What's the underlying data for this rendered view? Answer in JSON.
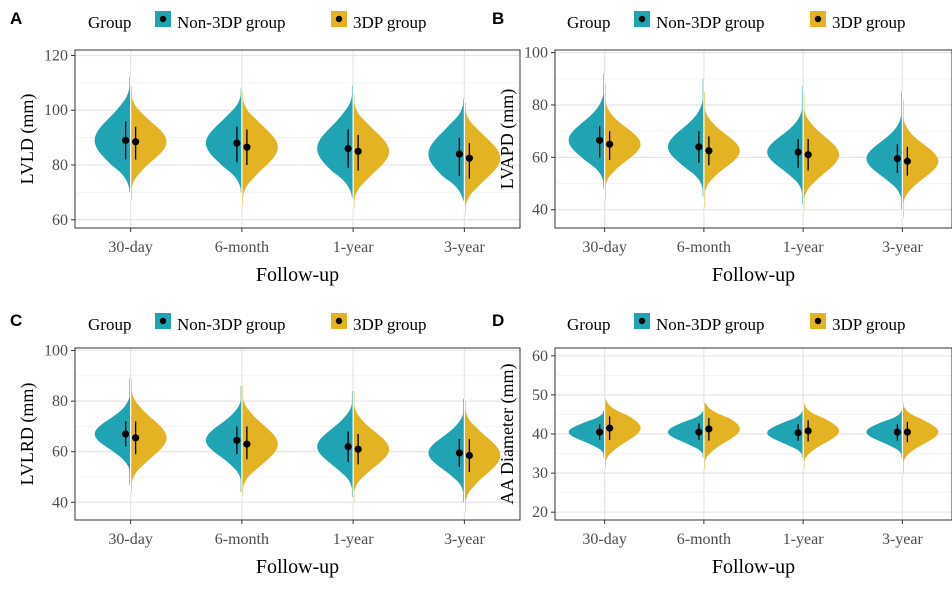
{
  "legend": {
    "title": "Group",
    "items": [
      {
        "label": "Non-3DP group",
        "color": "#20A4B4"
      },
      {
        "label": "3DP group",
        "color": "#E4B324"
      }
    ]
  },
  "chart_data": [
    {
      "panel": "A",
      "type": "violin-split",
      "xlabel": "Follow-up",
      "ylabel": "LVLD (mm)",
      "ylim": [
        57,
        122
      ],
      "yticks": [
        60,
        80,
        100,
        120
      ],
      "grid": true,
      "legend_position": "top",
      "categories": [
        "30-day",
        "6-month",
        "1-year",
        "3-year"
      ],
      "series": [
        {
          "name": "Non-3DP group",
          "mean": [
            89,
            88,
            86,
            84
          ],
          "sd_low": [
            82,
            81,
            79,
            76
          ],
          "sd_high": [
            96,
            94,
            93,
            90
          ],
          "min": [
            70,
            70,
            68,
            67
          ],
          "max": [
            112,
            108,
            109,
            104
          ]
        },
        {
          "name": "3DP group",
          "mean": [
            88.5,
            86.5,
            85,
            82.5
          ],
          "sd_low": [
            82,
            80,
            78,
            75
          ],
          "sd_high": [
            94,
            93,
            91,
            88
          ],
          "min": [
            67,
            65,
            64,
            62
          ],
          "max": [
            109,
            107,
            106,
            103
          ]
        }
      ]
    },
    {
      "panel": "B",
      "type": "violin-split",
      "xlabel": "Follow-up",
      "ylabel": "LVAPD (mm)",
      "ylim": [
        33,
        101
      ],
      "yticks": [
        40,
        60,
        80,
        100
      ],
      "grid": true,
      "legend_position": "top",
      "categories": [
        "30-day",
        "6-month",
        "1-year",
        "3-year"
      ],
      "series": [
        {
          "name": "Non-3DP group",
          "mean": [
            66.5,
            64,
            62,
            59.5
          ],
          "sd_low": [
            60,
            58,
            56,
            54
          ],
          "sd_high": [
            72,
            70,
            67,
            65
          ],
          "min": [
            48,
            45,
            42,
            40
          ],
          "max": [
            92,
            90,
            87,
            85
          ]
        },
        {
          "name": "3DP group",
          "mean": [
            65,
            62.5,
            61,
            58.5
          ],
          "sd_low": [
            59,
            57,
            55,
            53
          ],
          "sd_high": [
            70,
            68,
            67,
            64
          ],
          "min": [
            44,
            41,
            40,
            37
          ],
          "max": [
            88,
            85,
            84,
            82
          ]
        }
      ]
    },
    {
      "panel": "C",
      "type": "violin-split",
      "xlabel": "Follow-up",
      "ylabel": "LVLRD (mm)",
      "ylim": [
        33,
        101
      ],
      "yticks": [
        40,
        60,
        80,
        100
      ],
      "grid": true,
      "legend_position": "top",
      "categories": [
        "30-day",
        "6-month",
        "1-year",
        "3-year"
      ],
      "series": [
        {
          "name": "Non-3DP group",
          "mean": [
            67,
            64.5,
            62,
            59.5
          ],
          "sd_low": [
            62,
            59,
            56,
            54
          ],
          "sd_high": [
            72,
            70,
            68,
            65
          ],
          "min": [
            47,
            44,
            42,
            40
          ],
          "max": [
            89,
            86,
            84,
            81
          ]
        },
        {
          "name": "3DP group",
          "mean": [
            65.5,
            63,
            61,
            58.5
          ],
          "sd_low": [
            59,
            57,
            55,
            52
          ],
          "sd_high": [
            72,
            70,
            67,
            65
          ],
          "min": [
            44,
            43,
            40,
            36
          ],
          "max": [
            89,
            86,
            84,
            80
          ]
        }
      ]
    },
    {
      "panel": "D",
      "type": "violin-split",
      "xlabel": "Follow-up",
      "ylabel": "AA Diameter (mm)",
      "ylim": [
        18,
        62
      ],
      "yticks": [
        20,
        30,
        40,
        50,
        60
      ],
      "grid": true,
      "legend_position": "top",
      "categories": [
        "30-day",
        "6-month",
        "1-year",
        "3-year"
      ],
      "series": [
        {
          "name": "Non-3DP group",
          "mean": [
            40.5,
            40.5,
            40.3,
            40.5
          ],
          "sd_low": [
            38.5,
            38.5,
            38.3,
            38.3
          ],
          "sd_high": [
            42.5,
            42.7,
            42.5,
            42.5
          ],
          "min": [
            34,
            34,
            34,
            34
          ],
          "max": [
            46,
            46,
            46,
            46
          ]
        },
        {
          "name": "3DP group",
          "mean": [
            41.5,
            41.3,
            40.8,
            40.5
          ],
          "sd_low": [
            38.5,
            38.3,
            38.1,
            37.9
          ],
          "sd_high": [
            44.5,
            44.1,
            43.5,
            43.1
          ],
          "min": [
            31,
            31,
            31,
            30
          ],
          "max": [
            49,
            48,
            48,
            48
          ]
        }
      ]
    }
  ]
}
